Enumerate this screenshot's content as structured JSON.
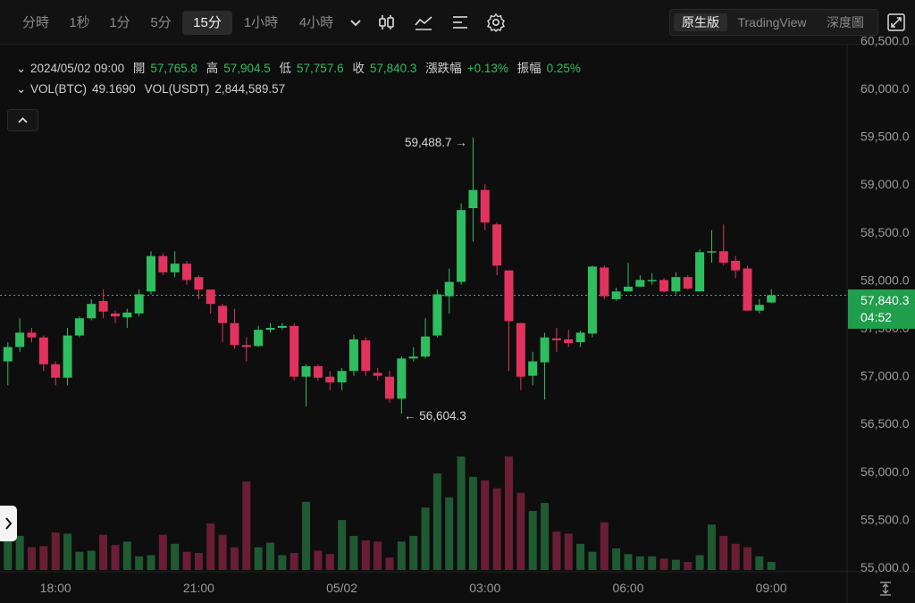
{
  "toolbar": {
    "timeframes": [
      "分時",
      "1秒",
      "1分",
      "5分",
      "15分",
      "1小時",
      "4小時"
    ],
    "active_timeframe": "15分",
    "chart_modes": [
      "原生版",
      "TradingView",
      "深度圖"
    ],
    "active_mode": "原生版",
    "icons": [
      "chevron-down-icon",
      "candlestick-type-icon",
      "indicator-icon",
      "settings-lines-icon",
      "gear-icon",
      "fullscreen-icon"
    ]
  },
  "info": {
    "datetime": "2024/05/02 09:00",
    "open_label": "開",
    "open": "57,765.8",
    "high_label": "高",
    "high": "57,904.5",
    "low_label": "低",
    "low": "57,757.6",
    "close_label": "收",
    "close": "57,840.3",
    "change_label": "漲跌幅",
    "change": "+0.13%",
    "amplitude_label": "振幅",
    "amplitude": "0.25%",
    "vol_btc_label": "VOL(BTC)",
    "vol_btc": "49.1690",
    "vol_usdt_label": "VOL(USDT)",
    "vol_usdt": "2,844,589.57"
  },
  "current_price": {
    "price": "57,840.3",
    "countdown": "04:52"
  },
  "annotations": {
    "max": "59,488.7 →",
    "min": "← 56,604.3"
  },
  "colors": {
    "up": "#2ebd5f",
    "down": "#e0345f",
    "background": "#0e0e0e"
  },
  "chart_data": {
    "type": "candlestick",
    "price_ticks": [
      "60,500.0",
      "60,000.0",
      "59,500.0",
      "59,000.0",
      "58,500.0",
      "58,000.0",
      "57,500.0",
      "57,000.0",
      "56,500.0",
      "56,000.0",
      "55,500.0",
      "55,000.0"
    ],
    "price_tick_values": [
      60500,
      60000,
      59500,
      59000,
      58500,
      58000,
      57500,
      57000,
      56500,
      56000,
      55500,
      55000
    ],
    "time_ticks": [
      "18:00",
      "21:00",
      "05/02",
      "03:00",
      "06:00",
      "09:00"
    ],
    "time_tick_index": [
      4,
      16,
      28,
      40,
      52,
      64
    ],
    "price_range": [
      54950,
      60600
    ],
    "candles": [
      [
        57150,
        57300,
        56900,
        57350
      ],
      [
        57300,
        57450,
        57250,
        57600
      ],
      [
        57450,
        57400,
        57350,
        57500
      ],
      [
        57400,
        57120,
        57050,
        57420
      ],
      [
        57120,
        56980,
        56900,
        57150
      ],
      [
        56980,
        57420,
        56900,
        57500
      ],
      [
        57420,
        57600,
        57400,
        57620
      ],
      [
        57600,
        57750,
        57580,
        57800
      ],
      [
        57780,
        57670,
        57600,
        57900
      ],
      [
        57650,
        57620,
        57550,
        57680
      ],
      [
        57610,
        57660,
        57500,
        57700
      ],
      [
        57650,
        57850,
        57620,
        57900
      ],
      [
        57880,
        58250,
        57850,
        58300
      ],
      [
        58250,
        58080,
        58050,
        58280
      ],
      [
        58080,
        58170,
        58030,
        58300
      ],
      [
        58170,
        58000,
        57950,
        58200
      ],
      [
        58030,
        57900,
        57800,
        58050
      ],
      [
        57900,
        57750,
        57650,
        57900
      ],
      [
        57730,
        57550,
        57350,
        57750
      ],
      [
        57550,
        57320,
        57280,
        57700
      ],
      [
        57320,
        57300,
        57150,
        57400
      ],
      [
        57310,
        57480,
        57300,
        57520
      ],
      [
        57480,
        57500,
        57450,
        57550
      ],
      [
        57500,
        57520,
        57480,
        57550
      ],
      [
        57520,
        56990,
        56950,
        57550
      ],
      [
        56990,
        57100,
        56680,
        57120
      ],
      [
        57100,
        56980,
        56950,
        57120
      ],
      [
        56990,
        56930,
        56850,
        57050
      ],
      [
        56930,
        57050,
        56850,
        57080
      ],
      [
        57050,
        57380,
        57000,
        57430
      ],
      [
        57370,
        57050,
        57000,
        57400
      ],
      [
        57030,
        57000,
        56950,
        57080
      ],
      [
        56990,
        56760,
        56720,
        57050
      ],
      [
        56760,
        57180,
        56604,
        57200
      ],
      [
        57180,
        57200,
        57150,
        57300
      ],
      [
        57200,
        57410,
        57180,
        57600
      ],
      [
        57420,
        57850,
        57400,
        57900
      ],
      [
        57830,
        57980,
        57650,
        58120
      ],
      [
        57980,
        58730,
        57950,
        58800
      ],
      [
        58750,
        58940,
        58400,
        59488
      ],
      [
        58940,
        58600,
        58520,
        59000
      ],
      [
        58580,
        58150,
        58050,
        58600
      ],
      [
        58100,
        57570,
        57050,
        58100
      ],
      [
        57550,
        56990,
        56850,
        57550
      ],
      [
        57000,
        57150,
        56900,
        57250
      ],
      [
        57140,
        57400,
        56750,
        57450
      ],
      [
        57390,
        57370,
        57250,
        57500
      ],
      [
        57380,
        57340,
        57300,
        57480
      ],
      [
        57350,
        57450,
        57300,
        57470
      ],
      [
        57440,
        58140,
        57400,
        58150
      ],
      [
        58130,
        57830,
        57800,
        58150
      ],
      [
        57800,
        57880,
        57780,
        57920
      ],
      [
        57880,
        57930,
        57880,
        58180
      ],
      [
        57930,
        58000,
        57930,
        58050
      ],
      [
        58000,
        58000,
        57950,
        58070
      ],
      [
        58000,
        57880,
        57870,
        58020
      ],
      [
        57880,
        58030,
        57850,
        58080
      ],
      [
        58030,
        57910,
        57900,
        58050
      ],
      [
        57880,
        58290,
        57900,
        58320
      ],
      [
        58290,
        58300,
        58180,
        58520
      ],
      [
        58300,
        58180,
        58150,
        58580
      ],
      [
        58200,
        58100,
        58020,
        58250
      ],
      [
        58120,
        57680,
        57680,
        58150
      ],
      [
        57680,
        57740,
        57650,
        57800
      ],
      [
        57765,
        57840,
        57757,
        57904
      ]
    ],
    "volumes": [
      28,
      30,
      20,
      21,
      33,
      32,
      16,
      17,
      31,
      22,
      25,
      12,
      13,
      31,
      23,
      16,
      15,
      41,
      31,
      20,
      78,
      20,
      24,
      13,
      15,
      60,
      17,
      14,
      44,
      30,
      26,
      25,
      11,
      25,
      30,
      55,
      85,
      64,
      100,
      82,
      79,
      72,
      100,
      68,
      52,
      59,
      34,
      32,
      23,
      16,
      42,
      19,
      14,
      12,
      12,
      10,
      9,
      7,
      13,
      40,
      30,
      23,
      20,
      12,
      7
    ]
  }
}
